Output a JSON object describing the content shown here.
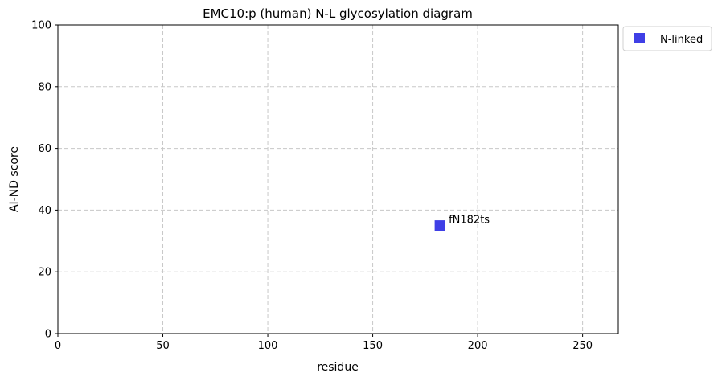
{
  "chart_data": {
    "type": "scatter",
    "title": "EMC10:p (human) N-L glycosylation diagram",
    "xlabel": "residue",
    "ylabel": "AI-ND score",
    "xlim": [
      0,
      267
    ],
    "ylim": [
      0,
      100
    ],
    "xticks": [
      0,
      50,
      100,
      150,
      200,
      250
    ],
    "yticks": [
      0,
      20,
      40,
      60,
      80,
      100
    ],
    "grid": true,
    "legend_position": "outside-top-right",
    "series": [
      {
        "name": "N-linked",
        "color": "#3f3fe6",
        "marker": "square",
        "points": [
          {
            "x": 182,
            "y": 35,
            "label": "fN182ts"
          }
        ]
      }
    ]
  }
}
